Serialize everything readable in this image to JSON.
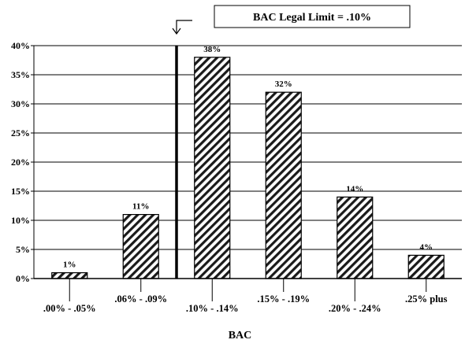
{
  "chart_data": {
    "type": "bar",
    "categories": [
      ".00% - .05%",
      ".06% - .09%",
      ".10% - .14%",
      ".15% - .19%",
      ".20% - .24%",
      ".25% plus"
    ],
    "values": [
      1,
      11,
      38,
      32,
      14,
      4
    ],
    "data_labels": [
      "1%",
      "11%",
      "38%",
      "32%",
      "14%",
      "4%"
    ],
    "title": "",
    "xlabel": "BAC",
    "ylabel": "",
    "ylim": [
      0,
      40
    ],
    "yticks": [
      0,
      5,
      10,
      15,
      20,
      25,
      30,
      35,
      40
    ],
    "ytick_labels": [
      "0%",
      "5%",
      "10%",
      "15%",
      "20%",
      "25%",
      "30%",
      "35%",
      "40%"
    ],
    "grid": true,
    "bar_pattern": "diagonal-hatch",
    "annotation": {
      "text": "BAC Legal Limit = .10%",
      "marker_between_categories": [
        1,
        2
      ]
    },
    "colors": {
      "bar_hatch": "#000000",
      "bar_fill": "#ffffff",
      "grid": "#000000"
    }
  }
}
